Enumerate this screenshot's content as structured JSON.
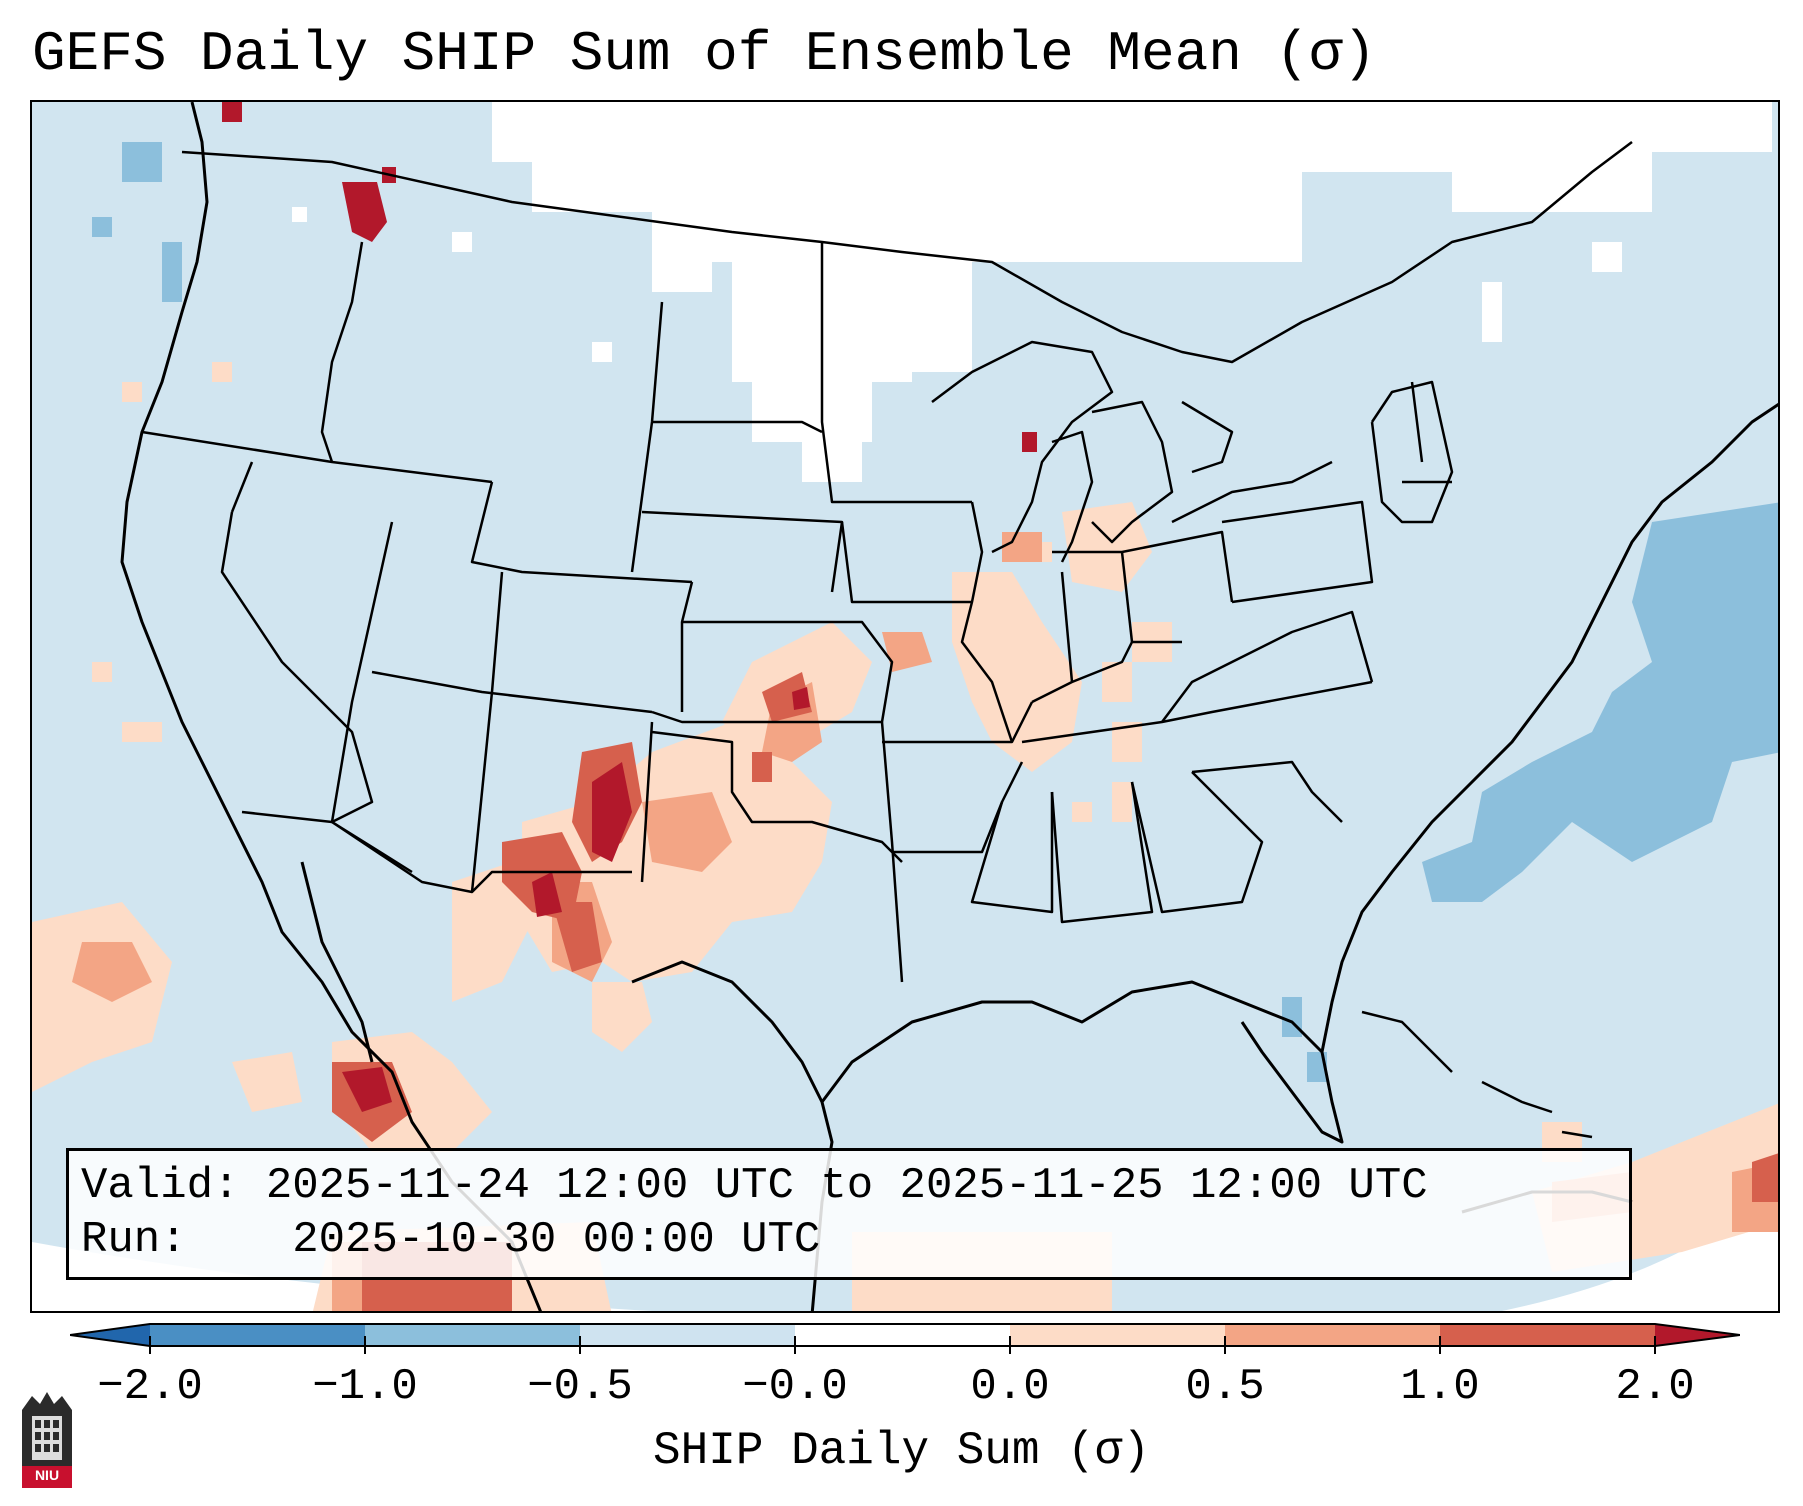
{
  "title": "GEFS Daily SHIP Sum of Ensemble Mean (σ)",
  "info": {
    "valid_label": "Valid:",
    "valid_value": "2025-11-24 12:00 UTC to 2025-11-25 12:00 UTC",
    "run_label": "Run:",
    "run_value": "2025-10-30 00:00 UTC"
  },
  "colorbar": {
    "label": "SHIP Daily Sum (σ)",
    "ticks": [
      "−2.0",
      "−1.0",
      "−0.5",
      "−0.0",
      "0.0",
      "0.5",
      "1.0",
      "2.0"
    ],
    "colors": [
      "#4a8fc4",
      "#8cbfdc",
      "#cfe3f0",
      "#ffffff",
      "#fddcc7",
      "#f3a585",
      "#d6604d",
      "#b2182b"
    ]
  },
  "logo": {
    "text": "NIU",
    "icon": "niu-tower-logo"
  },
  "map": {
    "projection": "Lambert conformal",
    "region": "Continental United States",
    "background_color": "#d1e5f0",
    "features": [
      {
        "area": "Northern Idaho",
        "level": 2.0
      },
      {
        "area": "Eastern New Mexico",
        "level": 2.0
      },
      {
        "area": "Southern New Mexico / West Texas",
        "level": 1.0
      },
      {
        "area": "West Texas",
        "level": 0.5
      },
      {
        "area": "Southwest Kansas",
        "level": 1.0
      },
      {
        "area": "Western Oklahoma",
        "level": 0.5
      },
      {
        "area": "Missouri / Illinois",
        "level": 0.5
      },
      {
        "area": "Wisconsin",
        "level": 2.0
      },
      {
        "area": "Western Mexico",
        "level": 2.0
      },
      {
        "area": "Pacific off Baja",
        "level": 0.5
      },
      {
        "area": "Caribbean",
        "level": 0.5
      },
      {
        "area": "Western Atlantic",
        "level": -0.5
      },
      {
        "area": "Canada",
        "level": -0.0
      }
    ]
  }
}
